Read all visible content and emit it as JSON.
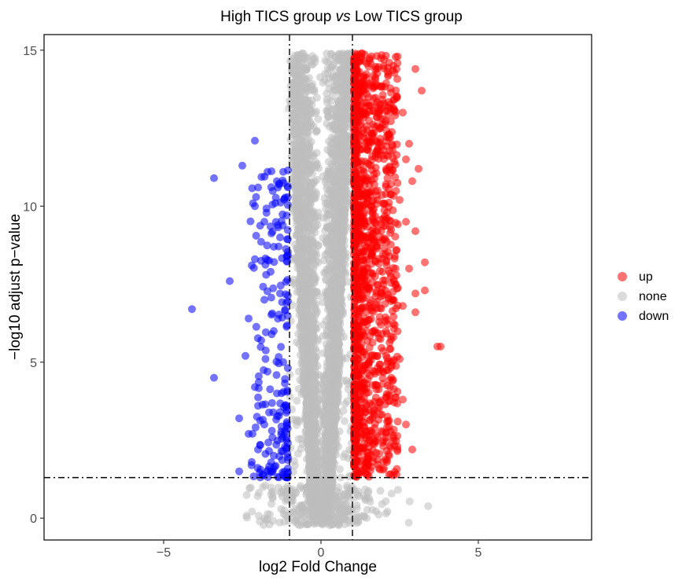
{
  "chart_data": {
    "type": "scatter",
    "subtype": "volcano",
    "title": {
      "prefix": "High TICS group ",
      "italic": "vs",
      "suffix": " Low TICS group"
    },
    "xlabel": "log2 Fold Change",
    "ylabel": "−log10 adjust p−value",
    "xlim": [
      -8.8,
      8.6
    ],
    "ylim": [
      -0.7,
      15.5
    ],
    "xticks": [
      -5,
      0,
      5
    ],
    "xtick_labels": [
      "−5",
      "0",
      "5"
    ],
    "yticks": [
      0,
      5,
      10,
      15
    ],
    "ytick_labels": [
      "0",
      "5",
      "10",
      "15"
    ],
    "thresholds": {
      "x": [
        -1,
        1
      ],
      "y": 1.3
    },
    "grid": false,
    "legend_position": "right",
    "series": [
      {
        "name": "up",
        "color": "#ff0000"
      },
      {
        "name": "none",
        "color": "#bebebe"
      },
      {
        "name": "down",
        "color": "#0000ff"
      }
    ],
    "highlight_points": {
      "up": [
        [
          1.3,
          14.9
        ],
        [
          1.6,
          14.8
        ],
        [
          2.0,
          14.7
        ],
        [
          2.3,
          14.5
        ],
        [
          2.4,
          14.4
        ],
        [
          3.0,
          14.4
        ],
        [
          3.2,
          13.7
        ],
        [
          2.3,
          13.4
        ],
        [
          2.6,
          13.0
        ],
        [
          1.9,
          12.8
        ],
        [
          2.2,
          12.2
        ],
        [
          2.8,
          12.0
        ],
        [
          1.5,
          11.8
        ],
        [
          2.7,
          11.5
        ],
        [
          3.1,
          11.2
        ],
        [
          2.9,
          10.8
        ],
        [
          1.8,
          10.5
        ],
        [
          2.5,
          10.2
        ],
        [
          2.1,
          9.8
        ],
        [
          2.7,
          9.5
        ],
        [
          3.0,
          9.2
        ],
        [
          1.6,
          9.0
        ],
        [
          2.4,
          8.6
        ],
        [
          3.3,
          8.2
        ],
        [
          2.8,
          8.0
        ],
        [
          3.3,
          7.3
        ],
        [
          3.0,
          7.2
        ],
        [
          2.6,
          6.8
        ],
        [
          3.0,
          6.6
        ],
        [
          1.9,
          6.2
        ],
        [
          2.3,
          5.8
        ],
        [
          3.7,
          5.5
        ],
        [
          3.8,
          5.5
        ],
        [
          2.5,
          5.1
        ],
        [
          1.7,
          4.7
        ],
        [
          2.2,
          4.2
        ],
        [
          2.6,
          3.8
        ],
        [
          1.4,
          3.4
        ],
        [
          2.1,
          3.1
        ],
        [
          2.7,
          3.0
        ],
        [
          1.8,
          2.6
        ],
        [
          2.2,
          2.3
        ],
        [
          2.9,
          2.2
        ],
        [
          1.5,
          1.9
        ],
        [
          2.0,
          1.6
        ],
        [
          1.3,
          1.5
        ],
        [
          2.4,
          1.4
        ]
      ],
      "down": [
        [
          -2.1,
          12.1
        ],
        [
          -2.5,
          11.3
        ],
        [
          -1.7,
          11.1
        ],
        [
          -3.4,
          10.9
        ],
        [
          -1.4,
          10.8
        ],
        [
          -1.2,
          11.1
        ],
        [
          -2.0,
          10.6
        ],
        [
          -1.8,
          9.5
        ],
        [
          -2.1,
          10.0
        ],
        [
          -1.3,
          9.0
        ],
        [
          -1.5,
          8.7
        ],
        [
          -2.1,
          8.3
        ],
        [
          -2.2,
          8.1
        ],
        [
          -1.6,
          7.9
        ],
        [
          -2.9,
          7.6
        ],
        [
          -1.3,
          7.2
        ],
        [
          -1.8,
          7.0
        ],
        [
          -4.1,
          6.7
        ],
        [
          -1.1,
          6.9
        ],
        [
          -2.3,
          6.4
        ],
        [
          -1.5,
          6.0
        ],
        [
          -1.9,
          5.7
        ],
        [
          -2.4,
          5.2
        ],
        [
          -1.2,
          5.0
        ],
        [
          -1.7,
          4.7
        ],
        [
          -3.4,
          4.5
        ],
        [
          -2.1,
          4.2
        ],
        [
          -1.4,
          4.0
        ],
        [
          -2.0,
          3.6
        ],
        [
          -1.3,
          3.4
        ],
        [
          -2.6,
          3.2
        ],
        [
          -1.8,
          3.0
        ],
        [
          -2.3,
          2.7
        ],
        [
          -1.1,
          2.5
        ],
        [
          -2.0,
          2.2
        ],
        [
          -1.5,
          2.0
        ],
        [
          -2.2,
          1.8
        ],
        [
          -2.6,
          1.5
        ],
        [
          -1.6,
          1.5
        ],
        [
          -1.2,
          1.4
        ]
      ]
    },
    "background_density": {
      "none_core": {
        "x_half_width_at_0": 0.15,
        "x_half_width_at_15": 1.0,
        "y_max": 14.9
      },
      "up_band": {
        "x_min": 1.0,
        "x_max": 2.4,
        "y_min": 1.3,
        "y_max": 14.9
      },
      "down_band": {
        "x_min": -2.2,
        "x_max": -1.0,
        "y_min": 1.3,
        "y_max": 11.2
      }
    }
  }
}
